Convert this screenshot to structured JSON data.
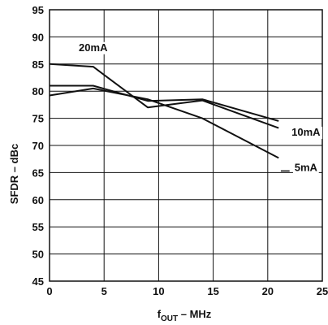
{
  "chart_data": {
    "type": "line",
    "xlabel_main": "f",
    "xlabel_sub": "OUT",
    "xlabel_rest": " – MHz",
    "ylabel": "SFDR – dBc",
    "xlim": [
      0,
      25
    ],
    "ylim": [
      45,
      95
    ],
    "xticks": [
      0,
      5,
      10,
      15,
      20,
      25
    ],
    "yticks": [
      45,
      50,
      55,
      60,
      65,
      70,
      75,
      80,
      85,
      90,
      95
    ],
    "grid": true,
    "series": [
      {
        "name": "20mA",
        "x": [
          0,
          4,
          9,
          14,
          21
        ],
        "y": [
          85,
          84.5,
          77,
          78.3,
          73.2
        ]
      },
      {
        "name": "10mA",
        "x": [
          0,
          4,
          9,
          14,
          21
        ],
        "y": [
          81,
          81,
          78.2,
          78.5,
          74.5
        ]
      },
      {
        "name": "5mA",
        "x": [
          0,
          4,
          9,
          14,
          21
        ],
        "y": [
          79.2,
          80.5,
          78.5,
          75,
          67.7
        ]
      }
    ]
  }
}
